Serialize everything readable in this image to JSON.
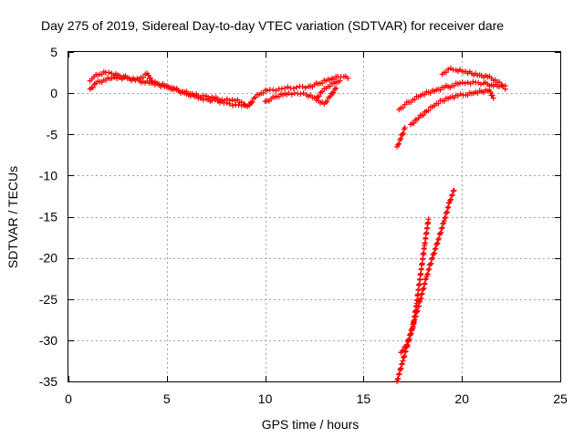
{
  "chart_data": {
    "type": "scatter",
    "title": "Day 275 of 2019, Sidereal Day-to-day VTEC variation (SDTVAR) for receiver dare",
    "xlabel": "GPS time / hours",
    "ylabel": "SDTVAR / TECUs",
    "xlim": [
      0,
      25
    ],
    "ylim": [
      -35,
      5
    ],
    "x_ticks": [
      0,
      5,
      10,
      15,
      20,
      25
    ],
    "y_ticks": [
      5,
      0,
      -5,
      -10,
      -15,
      -20,
      -25,
      -30,
      -35
    ],
    "x_tick_labels": [
      "0",
      "5",
      "10",
      "15",
      "20",
      "25"
    ],
    "y_tick_labels": [
      "5",
      "0",
      "-5",
      "-10",
      "-15",
      "-20",
      "-25",
      "-30",
      "-35"
    ],
    "grid": true,
    "marker": "plus",
    "color": "#ff0000",
    "series": [
      {
        "x": [
          1.1,
          1.3,
          1.6,
          1.9,
          2.2,
          2.5,
          2.8,
          3.1,
          3.4,
          3.7,
          4.0,
          4.3,
          4.6,
          4.9,
          5.2,
          5.5,
          5.8,
          6.1,
          6.4,
          6.7,
          7.0,
          7.3,
          7.6,
          7.9,
          8.2,
          8.5,
          8.8,
          9.1,
          9.3
        ],
        "y": [
          1.5,
          2.0,
          2.3,
          2.5,
          2.4,
          2.2,
          2.0,
          1.8,
          1.6,
          1.9,
          2.4,
          1.3,
          1.1,
          0.9,
          0.7,
          0.4,
          0.1,
          -0.2,
          -0.4,
          -0.6,
          -0.7,
          -0.9,
          -1.0,
          -1.2,
          -1.3,
          -1.4,
          -1.5,
          -1.6,
          -1.2
        ]
      },
      {
        "x": [
          1.1,
          1.4,
          1.8,
          2.2,
          2.6,
          3.0,
          3.4,
          3.8,
          4.2,
          4.6,
          5.0,
          5.4,
          5.8,
          6.2,
          6.6,
          7.0,
          7.4,
          7.8,
          8.2,
          8.6,
          9.0
        ],
        "y": [
          0.5,
          1.2,
          1.6,
          1.8,
          1.9,
          1.8,
          1.6,
          1.4,
          1.2,
          1.0,
          0.8,
          0.5,
          0.2,
          -0.1,
          -0.3,
          -0.4,
          -0.6,
          -0.8,
          -0.9,
          -0.8,
          -1.5
        ]
      },
      {
        "x": [
          9.2,
          9.5,
          9.8,
          10.1,
          10.4,
          10.7,
          11.0,
          11.3,
          11.6,
          11.9,
          12.2,
          12.5,
          12.8,
          13.1,
          13.4,
          13.7,
          14.0,
          14.2
        ],
        "y": [
          -1.3,
          -0.5,
          0.0,
          0.3,
          0.4,
          0.5,
          0.6,
          0.6,
          0.7,
          0.8,
          0.8,
          1.0,
          1.2,
          1.5,
          1.8,
          2.0,
          2.0,
          1.8
        ]
      },
      {
        "x": [
          10.0,
          10.3,
          10.6,
          10.9,
          11.2,
          11.5,
          11.8,
          12.1,
          12.4,
          12.7,
          13.0,
          13.3,
          13.6
        ],
        "y": [
          -1.0,
          -0.7,
          -0.4,
          -0.2,
          0.0,
          0.0,
          -0.1,
          -0.2,
          -0.5,
          -0.9,
          -1.3,
          -0.4,
          0.6
        ]
      },
      {
        "x": [
          12.6,
          12.9,
          13.2,
          13.5,
          13.8
        ],
        "y": [
          -0.6,
          0.2,
          0.8,
          1.2,
          1.5
        ]
      },
      {
        "x": [
          16.7,
          16.9,
          17.1
        ],
        "y": [
          -6.5,
          -5.5,
          -4.2
        ]
      },
      {
        "x": [
          16.8,
          17.1,
          17.5,
          17.9,
          18.3,
          18.7,
          19.1,
          19.5,
          19.9,
          20.3,
          20.7,
          21.1,
          21.5,
          21.9,
          22.2
        ],
        "y": [
          -2.0,
          -1.4,
          -0.8,
          -0.3,
          0.1,
          0.4,
          0.7,
          0.9,
          1.2,
          1.3,
          1.3,
          1.2,
          1.0,
          0.8,
          0.9
        ]
      },
      {
        "x": [
          17.4,
          17.8,
          18.2,
          18.6,
          19.0,
          19.4,
          19.8,
          20.2,
          20.6,
          21.0,
          21.4,
          21.6
        ],
        "y": [
          -3.8,
          -3.0,
          -2.2,
          -1.5,
          -0.9,
          -0.5,
          -0.3,
          -0.2,
          0.0,
          0.2,
          0.4,
          -0.6
        ]
      },
      {
        "x": [
          19.0,
          19.3,
          19.7,
          20.1,
          20.5,
          20.9,
          21.3,
          21.7,
          22.0,
          22.2
        ],
        "y": [
          2.3,
          2.9,
          2.8,
          2.6,
          2.4,
          2.2,
          2.0,
          1.6,
          1.0,
          0.5
        ]
      },
      {
        "x": [
          16.7,
          17.0,
          17.3,
          17.6,
          17.9,
          18.2,
          18.5,
          18.8,
          19.1,
          19.4,
          19.6
        ],
        "y": [
          -35.0,
          -32.5,
          -30.0,
          -27.5,
          -25.0,
          -22.3,
          -20.0,
          -17.8,
          -15.5,
          -13.0,
          -11.8
        ]
      },
      {
        "x": [
          16.9,
          17.2,
          17.5,
          17.7,
          17.9,
          18.1,
          18.3
        ],
        "y": [
          -31.5,
          -30.5,
          -28.5,
          -25.5,
          -22.0,
          -18.5,
          -15.3
        ]
      }
    ]
  }
}
